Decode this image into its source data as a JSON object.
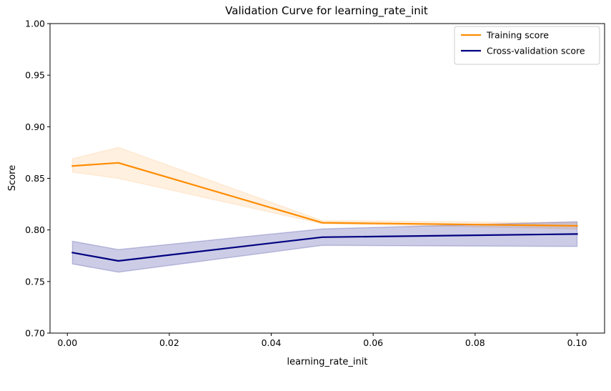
{
  "chart_data": {
    "type": "line",
    "title": "Validation Curve for learning_rate_init",
    "xlabel": "learning_rate_init",
    "ylabel": "Score",
    "xlim": [
      -0.0034,
      0.1054
    ],
    "ylim": [
      0.7,
      1.0
    ],
    "xticks": [
      0.0,
      0.02,
      0.04,
      0.06,
      0.08,
      0.1
    ],
    "xtick_labels": [
      "0.00",
      "0.02",
      "0.04",
      "0.06",
      "0.08",
      "0.10"
    ],
    "yticks": [
      0.7,
      0.75,
      0.8,
      0.85,
      0.9,
      0.95,
      1.0
    ],
    "ytick_labels": [
      "0.70",
      "0.75",
      "0.80",
      "0.85",
      "0.90",
      "0.95",
      "1.00"
    ],
    "grid": false,
    "legend_position": "top-right",
    "x": [
      0.001,
      0.01,
      0.05,
      0.1
    ],
    "series": [
      {
        "name": "Training score",
        "color": "#ff8c00",
        "band_color": "#ffb366",
        "values": [
          0.862,
          0.865,
          0.807,
          0.804
        ],
        "upper": [
          0.869,
          0.88,
          0.809,
          0.807
        ],
        "lower": [
          0.856,
          0.85,
          0.806,
          0.801
        ]
      },
      {
        "name": "Cross-validation score",
        "color": "#000080",
        "band_color": "#000080",
        "values": [
          0.778,
          0.77,
          0.793,
          0.796
        ],
        "upper": [
          0.789,
          0.781,
          0.801,
          0.808
        ],
        "lower": [
          0.767,
          0.759,
          0.785,
          0.784
        ]
      }
    ]
  }
}
